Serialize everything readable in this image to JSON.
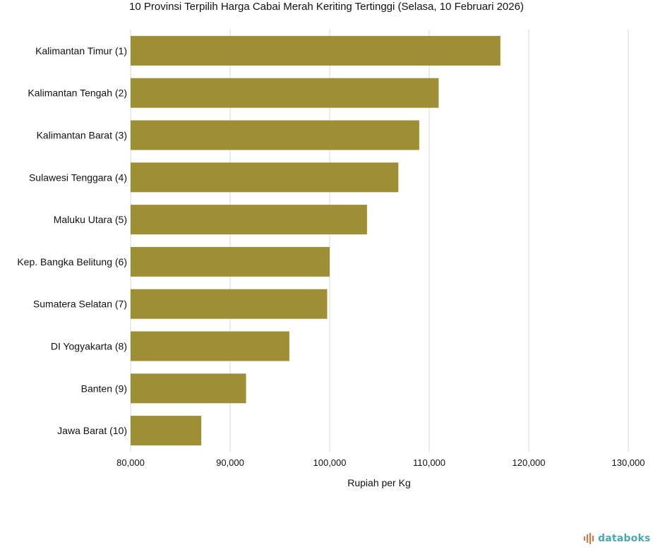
{
  "chart_data": {
    "type": "bar",
    "orientation": "horizontal",
    "title": "10 Provinsi Terpilih Harga Cabai Merah Keriting Tertinggi (Selasa, 10 Februari 2026)",
    "xlabel": "Rupiah per Kg",
    "ylabel": "",
    "categories": [
      "Kalimantan Timur (1)",
      "Kalimantan Tengah (2)",
      "Kalimantan Barat (3)",
      "Sulawesi Tenggara (4)",
      "Maluku Utara (5)",
      "Kep. Bangka Belitung (6)",
      "Sumatera Selatan (7)",
      "DI Yogyakarta (8)",
      "Banten (9)",
      "Jawa Barat (10)"
    ],
    "values": [
      117150,
      110950,
      109000,
      106900,
      103750,
      100000,
      99750,
      95950,
      91600,
      87100
    ],
    "xlim": [
      80000,
      130000
    ],
    "xticks": [
      "80,000",
      "90,000",
      "100,000",
      "110,000",
      "120,000",
      "130,000"
    ],
    "xtick_values": [
      80000,
      90000,
      100000,
      110000,
      120000,
      130000
    ],
    "grid": true,
    "bar_color": "#9e8e35",
    "grid_color": "#d9d9d9"
  },
  "brand": {
    "name": "databoks",
    "icon": "databoks-logo-icon",
    "text_color": "#4aa9b0",
    "icon_color": "#e8703a"
  }
}
